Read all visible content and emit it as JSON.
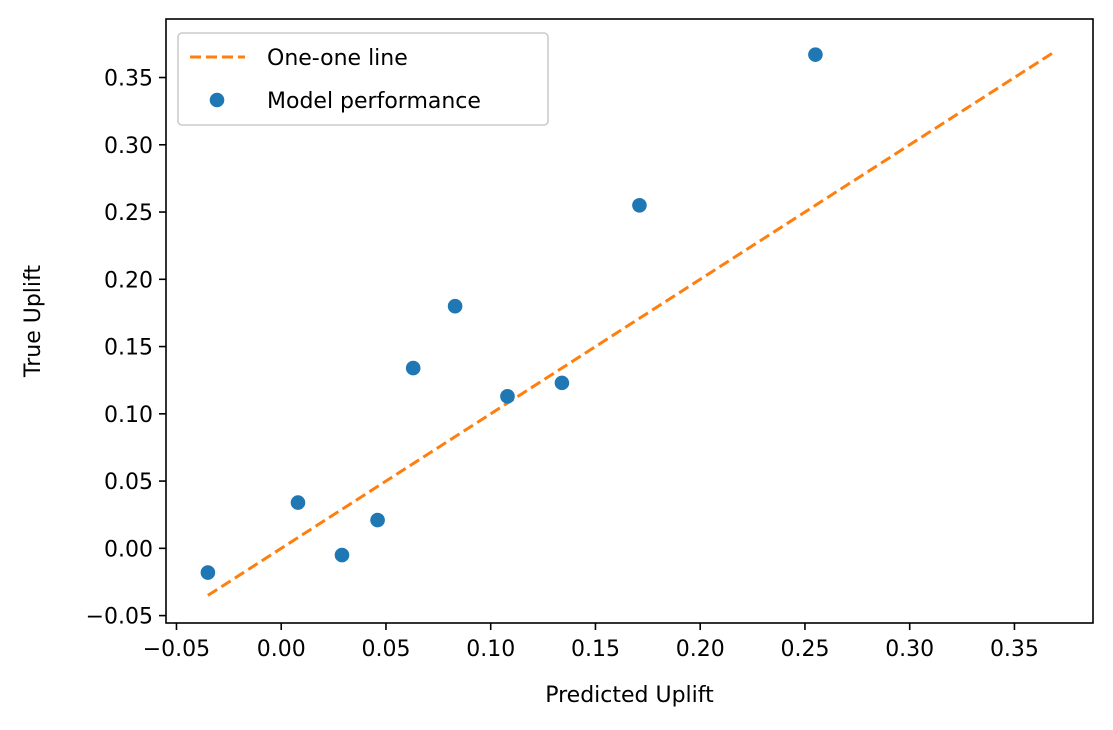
{
  "chart_data": {
    "type": "scatter",
    "xlabel": "Predicted Uplift",
    "ylabel": "True Uplift",
    "xlim": [
      -0.055,
      0.3875
    ],
    "ylim": [
      -0.0555,
      0.3935
    ],
    "x_ticks": [
      -0.05,
      0.0,
      0.05,
      0.1,
      0.15,
      0.2,
      0.25,
      0.3,
      0.35
    ],
    "x_tick_labels": [
      "−0.05",
      "0.00",
      "0.05",
      "0.10",
      "0.15",
      "0.20",
      "0.25",
      "0.30",
      "0.35"
    ],
    "y_ticks": [
      -0.05,
      0.0,
      0.05,
      0.1,
      0.15,
      0.2,
      0.25,
      0.3,
      0.35
    ],
    "y_tick_labels": [
      "−0.05",
      "0.00",
      "0.05",
      "0.10",
      "0.15",
      "0.20",
      "0.25",
      "0.30",
      "0.35"
    ],
    "grid": false,
    "legend_position": "top-left",
    "series": [
      {
        "name": "One-one line",
        "type": "line",
        "style": "dashed",
        "color": "#ff7f0e",
        "x": [
          -0.035,
          0.368
        ],
        "y": [
          -0.035,
          0.368
        ]
      },
      {
        "name": "Model performance",
        "type": "scatter",
        "color": "#1f77b4",
        "x": [
          -0.035,
          0.008,
          0.029,
          0.046,
          0.063,
          0.083,
          0.108,
          0.134,
          0.171,
          0.255
        ],
        "y": [
          -0.018,
          0.034,
          -0.005,
          0.021,
          0.134,
          0.18,
          0.113,
          0.123,
          0.255,
          0.367
        ]
      }
    ]
  }
}
